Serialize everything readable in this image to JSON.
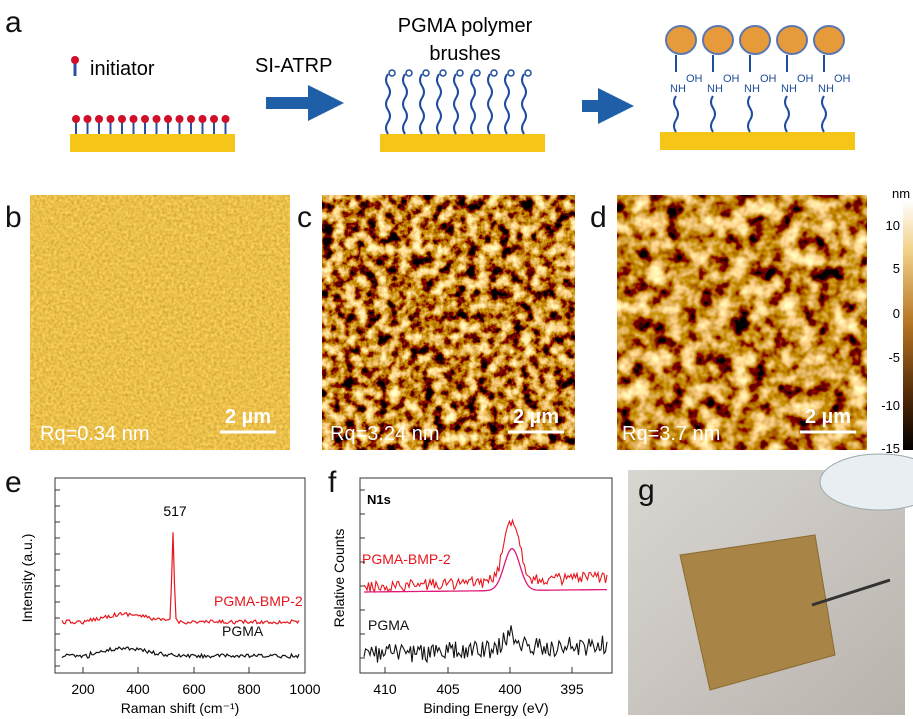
{
  "panels": {
    "a": {
      "label": "a",
      "initiator": "initiator",
      "step": "SI-ATRP",
      "brush_title_1": "PGMA polymer",
      "brush_title_2": "brushes",
      "nh": "NH",
      "oh": "OH"
    },
    "b": {
      "label": "b",
      "rq": "Rq=0.34 nm",
      "scale": "2 µm"
    },
    "c": {
      "label": "c",
      "rq": "Rq=3.24 nm",
      "scale": "2 µm"
    },
    "d": {
      "label": "d",
      "rq": "Rq=3.7 nm",
      "scale": "2 µm"
    },
    "colorbar": {
      "unit": "nm",
      "ticks": [
        "10",
        "5",
        "0",
        "-5",
        "-10",
        "-15"
      ]
    },
    "e": {
      "label": "e",
      "xlabel": "Raman shift (cm⁻¹)",
      "ylabel": "Intensity (a.u.)",
      "peak": "517",
      "series_1": "PGMA-BMP-2",
      "series_2": "PGMA",
      "xticks": [
        "200",
        "400",
        "600",
        "800",
        "1000"
      ]
    },
    "f": {
      "label": "f",
      "title": "N1s",
      "xlabel": "Binding Energy (eV)",
      "ylabel": "Relative Counts",
      "series_1": "PGMA-BMP-2",
      "series_2": "PGMA",
      "xticks": [
        "410",
        "405",
        "400",
        "395"
      ]
    },
    "g": {
      "label": "g"
    }
  }
}
